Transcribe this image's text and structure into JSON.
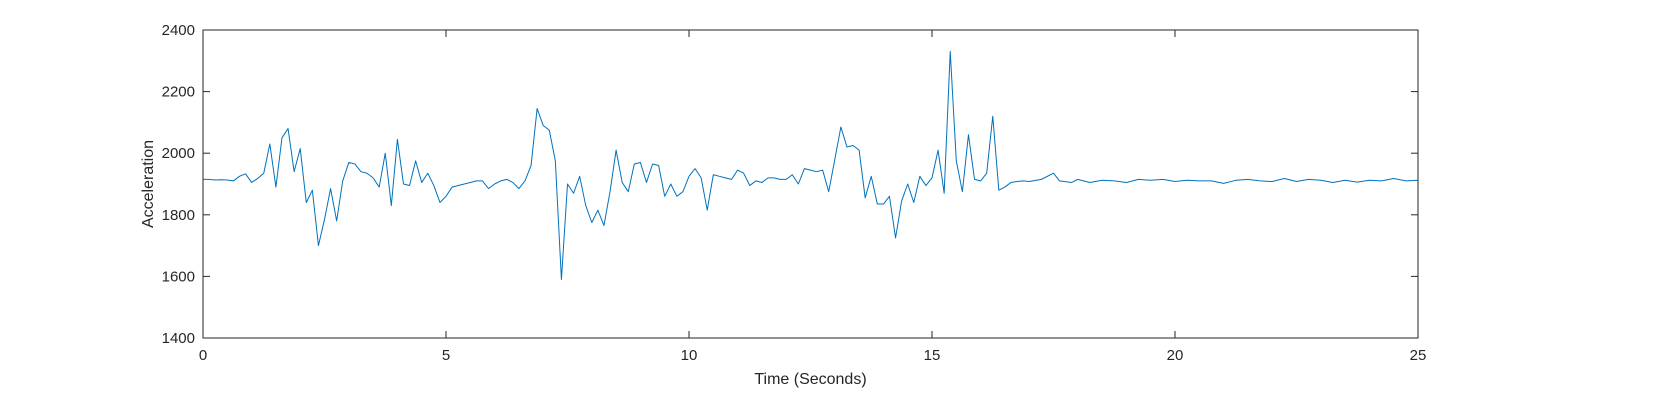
{
  "chart_data": {
    "type": "line",
    "title": "",
    "xlabel": "Time (Seconds)",
    "ylabel": "Acceleration",
    "xlim": [
      0,
      25
    ],
    "ylim": [
      1400,
      2400
    ],
    "x_ticks": [
      0,
      5,
      10,
      15,
      20,
      25
    ],
    "y_ticks": [
      1400,
      1600,
      1800,
      2000,
      2200,
      2400
    ],
    "grid": false,
    "legend": "none",
    "series": [
      {
        "color": "#0072BD",
        "points": [
          [
            0.0,
            1915
          ],
          [
            0.125,
            1915
          ],
          [
            0.25,
            1913
          ],
          [
            0.375,
            1914
          ],
          [
            0.5,
            1913
          ],
          [
            0.625,
            1910
          ],
          [
            0.75,
            1925
          ],
          [
            0.875,
            1933
          ],
          [
            1.0,
            1905
          ],
          [
            1.125,
            1918
          ],
          [
            1.25,
            1935
          ],
          [
            1.375,
            2030
          ],
          [
            1.5,
            1890
          ],
          [
            1.625,
            2050
          ],
          [
            1.75,
            2080
          ],
          [
            1.875,
            1940
          ],
          [
            2.0,
            2015
          ],
          [
            2.125,
            1840
          ],
          [
            2.25,
            1880
          ],
          [
            2.375,
            1700
          ],
          [
            2.5,
            1785
          ],
          [
            2.625,
            1885
          ],
          [
            2.75,
            1780
          ],
          [
            2.875,
            1910
          ],
          [
            3.0,
            1970
          ],
          [
            3.125,
            1965
          ],
          [
            3.25,
            1940
          ],
          [
            3.375,
            1935
          ],
          [
            3.5,
            1920
          ],
          [
            3.625,
            1890
          ],
          [
            3.75,
            2000
          ],
          [
            3.875,
            1830
          ],
          [
            4.0,
            2045
          ],
          [
            4.125,
            1900
          ],
          [
            4.25,
            1895
          ],
          [
            4.375,
            1975
          ],
          [
            4.5,
            1905
          ],
          [
            4.625,
            1935
          ],
          [
            4.75,
            1895
          ],
          [
            4.875,
            1840
          ],
          [
            5.0,
            1860
          ],
          [
            5.125,
            1890
          ],
          [
            5.25,
            1895
          ],
          [
            5.375,
            1900
          ],
          [
            5.5,
            1905
          ],
          [
            5.625,
            1910
          ],
          [
            5.75,
            1910
          ],
          [
            5.875,
            1885
          ],
          [
            6.0,
            1900
          ],
          [
            6.125,
            1910
          ],
          [
            6.25,
            1915
          ],
          [
            6.375,
            1905
          ],
          [
            6.5,
            1885
          ],
          [
            6.625,
            1910
          ],
          [
            6.75,
            1960
          ],
          [
            6.875,
            2145
          ],
          [
            7.0,
            2090
          ],
          [
            7.125,
            2075
          ],
          [
            7.25,
            1975
          ],
          [
            7.375,
            1590
          ],
          [
            7.5,
            1900
          ],
          [
            7.625,
            1870
          ],
          [
            7.75,
            1925
          ],
          [
            7.875,
            1830
          ],
          [
            8.0,
            1775
          ],
          [
            8.125,
            1815
          ],
          [
            8.25,
            1765
          ],
          [
            8.375,
            1875
          ],
          [
            8.5,
            2010
          ],
          [
            8.625,
            1905
          ],
          [
            8.75,
            1875
          ],
          [
            8.875,
            1965
          ],
          [
            9.0,
            1970
          ],
          [
            9.125,
            1905
          ],
          [
            9.25,
            1965
          ],
          [
            9.375,
            1960
          ],
          [
            9.5,
            1860
          ],
          [
            9.625,
            1900
          ],
          [
            9.75,
            1860
          ],
          [
            9.875,
            1875
          ],
          [
            10.0,
            1925
          ],
          [
            10.125,
            1950
          ],
          [
            10.25,
            1920
          ],
          [
            10.375,
            1815
          ],
          [
            10.5,
            1930
          ],
          [
            10.625,
            1925
          ],
          [
            10.75,
            1920
          ],
          [
            10.875,
            1915
          ],
          [
            11.0,
            1945
          ],
          [
            11.125,
            1935
          ],
          [
            11.25,
            1895
          ],
          [
            11.375,
            1910
          ],
          [
            11.5,
            1905
          ],
          [
            11.625,
            1920
          ],
          [
            11.75,
            1920
          ],
          [
            11.875,
            1915
          ],
          [
            12.0,
            1915
          ],
          [
            12.125,
            1930
          ],
          [
            12.25,
            1900
          ],
          [
            12.375,
            1950
          ],
          [
            12.5,
            1945
          ],
          [
            12.625,
            1940
          ],
          [
            12.75,
            1945
          ],
          [
            12.875,
            1875
          ],
          [
            13.0,
            1980
          ],
          [
            13.125,
            2085
          ],
          [
            13.25,
            2020
          ],
          [
            13.375,
            2025
          ],
          [
            13.5,
            2010
          ],
          [
            13.625,
            1855
          ],
          [
            13.75,
            1925
          ],
          [
            13.875,
            1835
          ],
          [
            14.0,
            1835
          ],
          [
            14.125,
            1860
          ],
          [
            14.25,
            1725
          ],
          [
            14.375,
            1845
          ],
          [
            14.5,
            1900
          ],
          [
            14.625,
            1840
          ],
          [
            14.75,
            1925
          ],
          [
            14.875,
            1895
          ],
          [
            15.0,
            1920
          ],
          [
            15.125,
            2010
          ],
          [
            15.25,
            1870
          ],
          [
            15.375,
            2330
          ],
          [
            15.5,
            1975
          ],
          [
            15.625,
            1875
          ],
          [
            15.75,
            2060
          ],
          [
            15.875,
            1915
          ],
          [
            16.0,
            1910
          ],
          [
            16.125,
            1935
          ],
          [
            16.25,
            2120
          ],
          [
            16.375,
            1880
          ],
          [
            16.5,
            1890
          ],
          [
            16.625,
            1905
          ],
          [
            16.75,
            1908
          ],
          [
            16.875,
            1910
          ],
          [
            17.0,
            1908
          ],
          [
            17.25,
            1915
          ],
          [
            17.5,
            1935
          ],
          [
            17.625,
            1910
          ],
          [
            17.875,
            1905
          ],
          [
            18.0,
            1915
          ],
          [
            18.25,
            1905
          ],
          [
            18.5,
            1912
          ],
          [
            18.75,
            1910
          ],
          [
            19.0,
            1905
          ],
          [
            19.25,
            1915
          ],
          [
            19.5,
            1912
          ],
          [
            19.75,
            1915
          ],
          [
            20.0,
            1908
          ],
          [
            20.25,
            1912
          ],
          [
            20.5,
            1910
          ],
          [
            20.75,
            1910
          ],
          [
            21.0,
            1902
          ],
          [
            21.25,
            1912
          ],
          [
            21.5,
            1915
          ],
          [
            21.75,
            1910
          ],
          [
            22.0,
            1908
          ],
          [
            22.25,
            1918
          ],
          [
            22.5,
            1908
          ],
          [
            22.75,
            1915
          ],
          [
            23.0,
            1912
          ],
          [
            23.25,
            1905
          ],
          [
            23.5,
            1912
          ],
          [
            23.75,
            1906
          ],
          [
            24.0,
            1912
          ],
          [
            24.25,
            1910
          ],
          [
            24.5,
            1918
          ],
          [
            24.75,
            1910
          ],
          [
            25.0,
            1912
          ]
        ]
      }
    ]
  }
}
